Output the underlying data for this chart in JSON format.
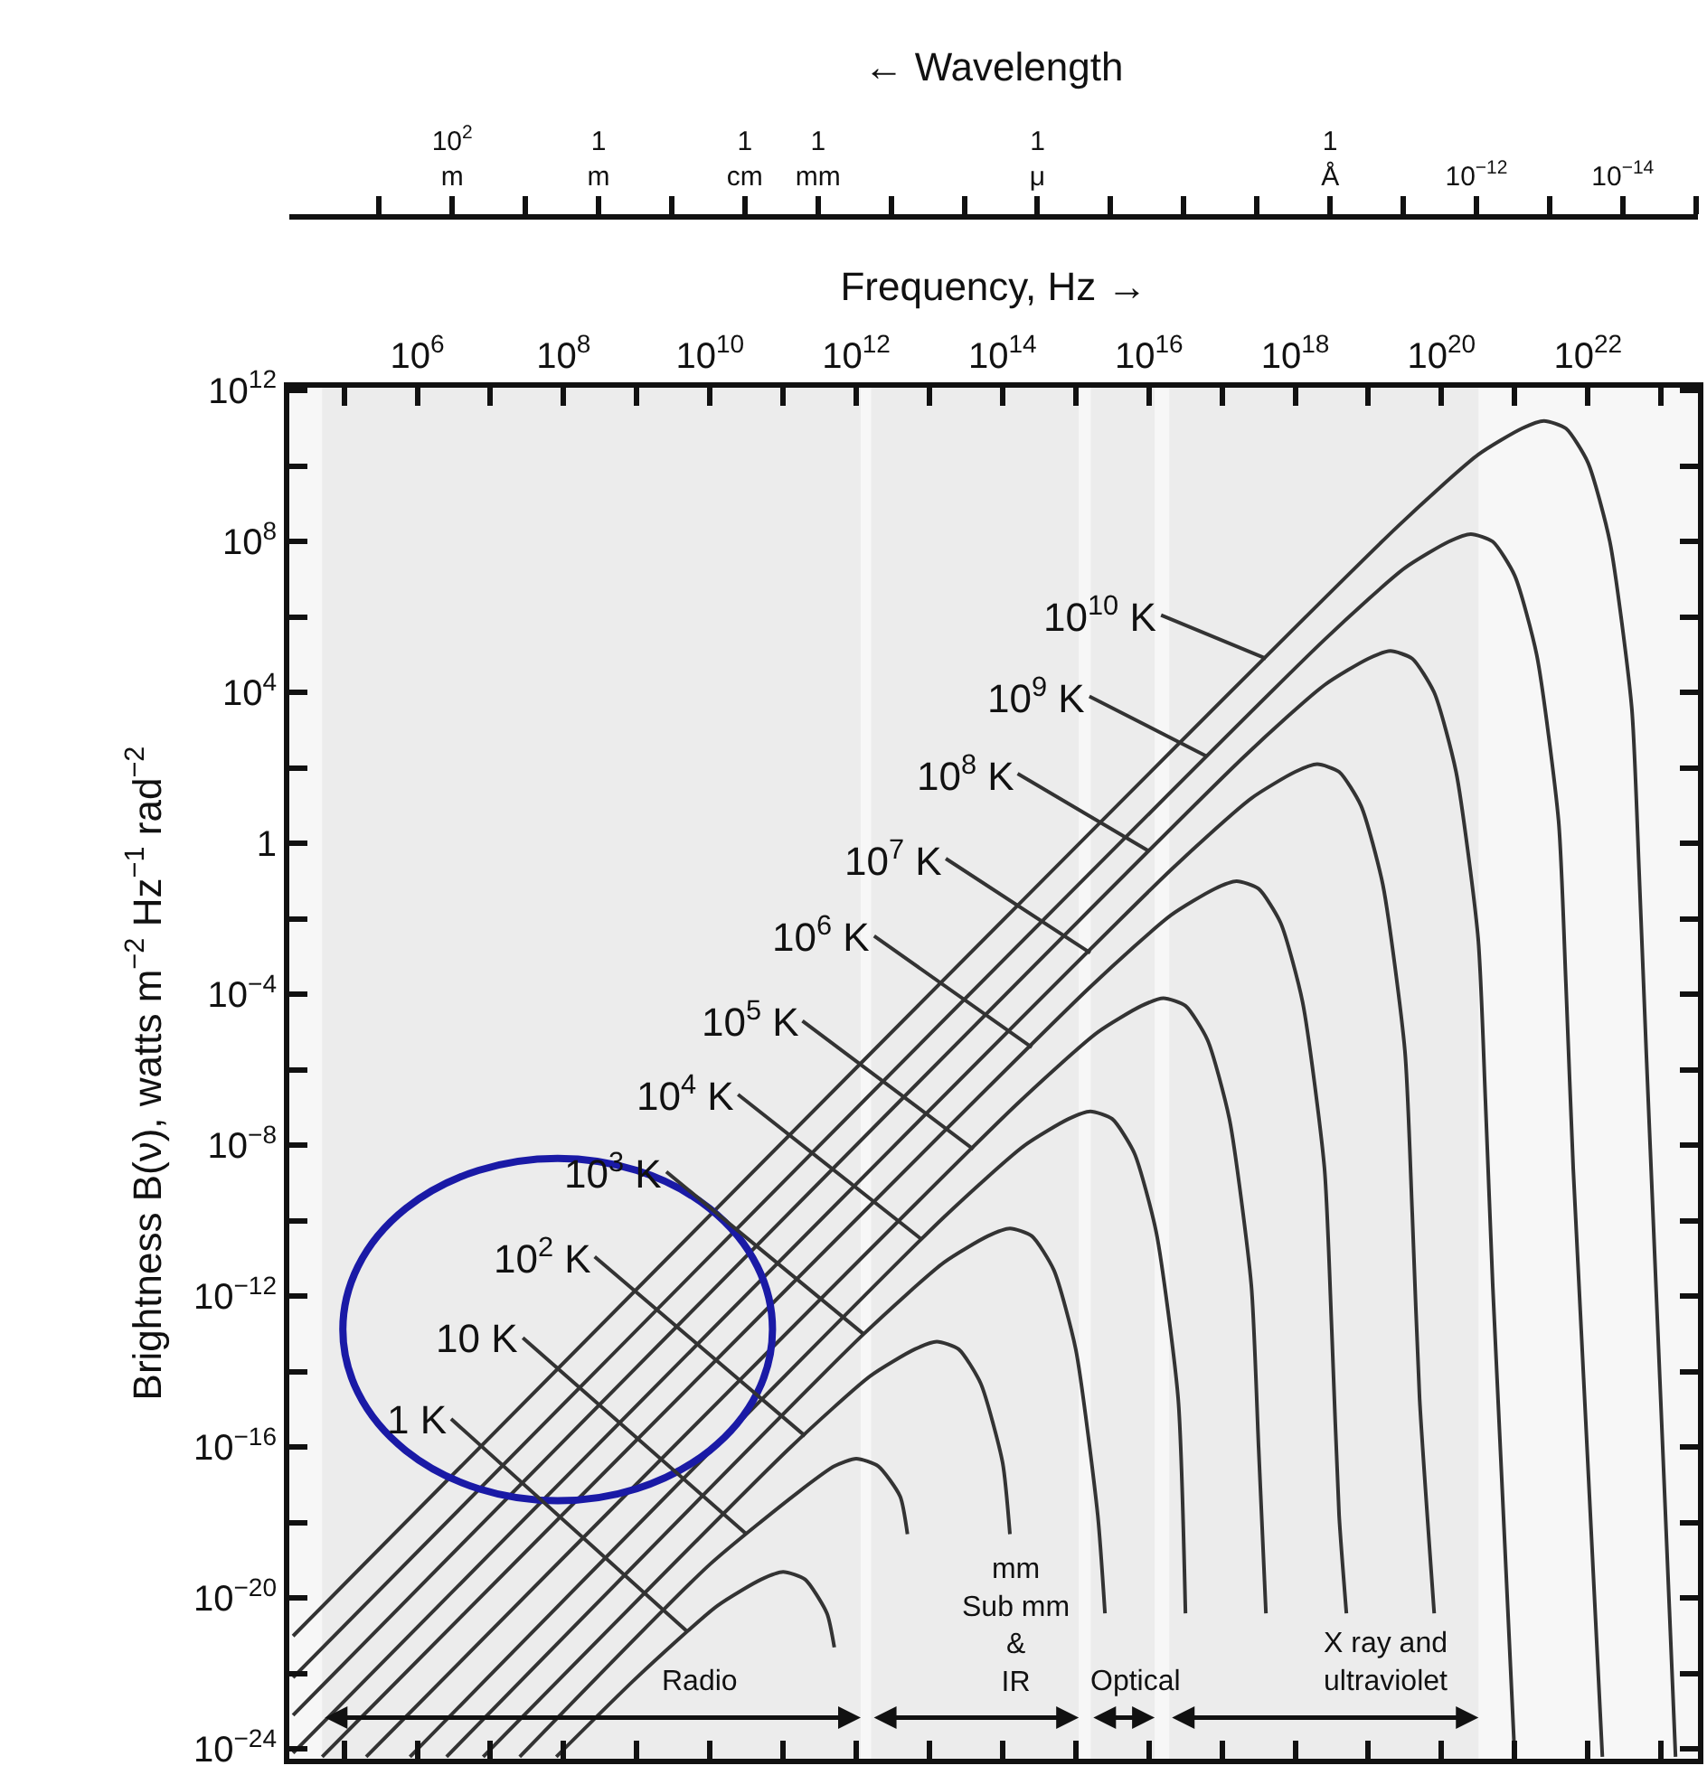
{
  "chart_data": [
    {
      "type": "other",
      "xlabel": "← Wavelength",
      "categories": [
        null,
        "10$^{2}$\nm",
        null,
        "1\nm",
        null,
        "1\ncm",
        "1\nmm",
        null,
        null,
        "1\nμ",
        null,
        null,
        null,
        "1\nÅ",
        null,
        "10$^{−12}$",
        null,
        "10$^{−14}$",
        null
      ]
    },
    {
      "type": "line",
      "xlabel": "Frequency, Hz →",
      "ylabel": "Brightness B(ν), watts m$^{−2}$ Hz$^{−1}$ rad$^{−2}$",
      "log": "xy",
      "marker": "none",
      "line_style": "solid",
      "xlim": [
        17800,
        3.2e+23
      ],
      "ylim": [
        5.6e-25,
        1200000000000.0
      ],
      "xticks": [
        {
          "value": 100000.0,
          "label": null
        },
        {
          "value": 1000000.0,
          "label": "10$^{6}$"
        },
        {
          "value": 10000000.0,
          "label": null
        },
        {
          "value": 100000000.0,
          "label": "10$^{8}$"
        },
        {
          "value": 1000000000.0,
          "label": null
        },
        {
          "value": 10000000000.0,
          "label": "10$^{10}$"
        },
        {
          "value": 100000000000.0,
          "label": null
        },
        {
          "value": 1000000000000.0,
          "label": "10$^{12}$"
        },
        {
          "value": 10000000000000.0,
          "label": null
        },
        {
          "value": 100000000000000.0,
          "label": "10$^{14}$"
        },
        {
          "value": 1000000000000000.0,
          "label": null
        },
        {
          "value": 1e+16,
          "label": "10$^{16}$"
        },
        {
          "value": 1e+17,
          "label": null
        },
        {
          "value": 1e+18,
          "label": "10$^{18}$"
        },
        {
          "value": 1e+19,
          "label": null
        },
        {
          "value": 1e+20,
          "label": "10$^{20}$"
        },
        {
          "value": 1e+21,
          "label": null
        },
        {
          "value": 1e+22,
          "label": "10$^{22}$"
        },
        {
          "value": 1e+23,
          "label": null
        }
      ],
      "yticks": [
        {
          "value": 1e-24,
          "label": "10$^{−24}$"
        },
        {
          "value": 1e-22,
          "label": null
        },
        {
          "value": 1e-20,
          "label": "10$^{−20}$"
        },
        {
          "value": 1e-18,
          "label": null
        },
        {
          "value": 1e-16,
          "label": "10$^{−16}$"
        },
        {
          "value": 1e-14,
          "label": null
        },
        {
          "value": 1e-12,
          "label": "10$^{−12}$"
        },
        {
          "value": 1e-10,
          "label": null
        },
        {
          "value": 1e-08,
          "label": "10$^{−8}$"
        },
        {
          "value": 1e-06,
          "label": null
        },
        {
          "value": 0.0001,
          "label": "10$^{−4}$"
        },
        {
          "value": 0.01,
          "label": null
        },
        {
          "value": 1,
          "label": "1"
        },
        {
          "value": 100,
          "label": null
        },
        {
          "value": 10000.0,
          "label": "10$^{4}$"
        },
        {
          "value": 1000000.0,
          "label": null
        },
        {
          "value": 100000000.0,
          "label": "10$^{8}$"
        },
        {
          "value": 10000000000.0,
          "label": null
        },
        {
          "value": 1000000000000.0,
          "label": "10$^{12}$"
        }
      ],
      "series": [
        {
          "color": "#333333",
          "x": [
            79400000.0,
            1000000000.0,
            12600000000.0,
            50100000000.0,
            100000000000.0,
            200000000000.0,
            398000000000.0,
            501000000000.0
          ],
          "values": [
            6.31e-25,
            7.94e-23,
            6.31e-21,
            3.16e-20,
            5.01e-20,
            3.16e-20,
            3.98e-21,
            5.01e-22
          ]
        },
        {
          "color": "#333333",
          "x": [
            25100000.0,
            10000000000.0,
            158000000000.0,
            501000000000.0,
            1000000000000.0,
            2000000000000.0,
            3980000000000.0,
            5010000000000.0
          ],
          "values": [
            6.31e-25,
            7.94e-20,
            6.31e-18,
            3.16e-17,
            5.01e-17,
            3.16e-17,
            5.01e-18,
            5.01e-19
          ]
        },
        {
          "color": "#333333",
          "x": [
            7940000.0,
            126000000000.0,
            1580000000000.0,
            6310000000000.0,
            12600000000000.0,
            25100000000000.0,
            50100000000000.0,
            100000000000000.0,
            126000000000000.0
          ],
          "values": [
            6.31e-25,
            1e-16,
            7.94e-15,
            3.98e-14,
            6.31e-14,
            3.98e-14,
            5.01e-15,
            3.98e-17,
            5.01e-19
          ]
        },
        {
          "color": "#333333",
          "x": [
            2510000.0,
            1260000000000.0,
            15800000000000.0,
            63100000000000.0,
            126000000000000.0,
            251000000000000.0,
            501000000000000.0,
            1000000000000000.0,
            2000000000000000.0,
            2510000000000000.0
          ],
          "values": [
            6.31e-25,
            1e-13,
            7.94e-12,
            3.98e-11,
            6.31e-11,
            3.98e-11,
            5.01e-12,
            3.98e-14,
            1.58e-18,
            3.98e-21
          ]
        },
        {
          "color": "#333333",
          "x": [
            794000.0,
            15800000000000.0,
            200000000000000.0,
            794000000000000.0,
            1580000000000000.0,
            3160000000000000.0,
            6310000000000000.0,
            1.26e+16,
            2.51e+16,
            3.16e+16
          ],
          "values": [
            6.31e-25,
            1.26e-10,
            1e-08,
            5.01e-08,
            7.94e-08,
            5.01e-08,
            6.31e-09,
            5.01e-11,
            2e-15,
            3.98e-21
          ]
        },
        {
          "color": "#333333",
          "x": [
            200000.0,
            158000000000000.0,
            2000000000000000.0,
            7940000000000000.0,
            1.58e+16,
            3.16e+16,
            6.31e+16,
            1.26e+17,
            2.51e+17,
            3.16e+17,
            3.98e+17
          ],
          "values": [
            6.31e-25,
            1.26e-07,
            1e-05,
            5.01e-05,
            7.94e-05,
            5.01e-05,
            6.31e-06,
            5.01e-08,
            2e-12,
            1e-16,
            3.98e-21
          ]
        },
        {
          "color": "#333333",
          "x": [
            50100.0,
            1580000000000000.0,
            2e+16,
            7.94e+16,
            1.58e+17,
            3.16e+17,
            6.31e+17,
            1.26e+18,
            2.51e+18,
            3.16e+18,
            3.98e+18,
            5.01e+18
          ],
          "values": [
            6.31e-25,
            0.000158,
            0.0126,
            0.0631,
            0.1,
            0.0631,
            0.00794,
            6.31e-05,
            2.51e-09,
            1.26e-13,
            1.58e-18,
            3.98e-21
          ]
        },
        {
          "color": "#333333",
          "x": [
            20000.0,
            2e+16,
            2.51e+17,
            1e+18,
            2e+18,
            3.98e+18,
            7.94e+18,
            1.58e+19,
            3.16e+19,
            3.98e+19,
            5.01e+19,
            7.94e+19
          ],
          "values": [
            7.94e-25,
            0.2,
            15.8,
            79.4,
            126,
            79.4,
            10,
            0.0794,
            3.16e-06,
            1.58e-10,
            2e-15,
            3.98e-21
          ]
        },
        {
          "color": "#333333",
          "x": [
            20000.0,
            2e+17,
            2.51e+18,
            1e+19,
            2e+19,
            3.98e+19,
            7.94e+19,
            1.58e+20,
            3.16e+20,
            3.98e+20,
            5.01e+20,
            1e+21
          ],
          "values": [
            7.94e-24,
            200,
            15800.0,
            79400.0,
            126000.0,
            79400.0,
            10000.0,
            79.4,
            0.00316,
            1.58e-07,
            2e-12,
            6.31e-25
          ]
        },
        {
          "color": "#333333",
          "x": [
            20000.0,
            2.51e+18,
            3.16e+19,
            1.26e+20,
            2.51e+20,
            5.01e+20,
            1e+21,
            2e+21,
            3.98e+21,
            5.01e+21,
            6.31e+21,
            1.58e+22
          ],
          "values": [
            7.94e-23,
            251000.0,
            20000000.0,
            100000000.0,
            158000000.0,
            100000000.0,
            12600000.0,
            100000.0,
            3.98,
            0.0002,
            2.51e-09,
            6.31e-25
          ]
        },
        {
          "color": "#333333",
          "x": [
            20000.0,
            2.51e+19,
            3.16e+20,
            1.26e+21,
            2.51e+21,
            5.01e+21,
            1e+22,
            2e+22,
            3.98e+22,
            5.01e+22,
            6.31e+22,
            1.58e+23
          ],
          "values": [
            1e-21,
            251000000.0,
            20000000000.0,
            100000000000.0,
            158000000000.0,
            100000000000.0,
            12600000000.0,
            100000000.0,
            3980.0,
            0.2,
            2.51e-06,
            6.31e-25
          ]
        }
      ],
      "annotations": [
        {
          "text": "1 K",
          "x": 5010000000.0,
          "y": 1.26e-21
        },
        {
          "text": "10 K",
          "x": 31600000000.0,
          "y": 5.01e-19
        },
        {
          "text": "10$^{2}$ K",
          "x": 200000000000.0,
          "y": 2e-16
        },
        {
          "text": "10$^{3}$ K",
          "x": 1260000000000.0,
          "y": 1e-13
        },
        {
          "text": "10$^{4}$ K",
          "x": 7940000000000.0,
          "y": 3.16e-11
        },
        {
          "text": "10$^{5}$ K",
          "x": 39800000000000.0,
          "y": 7.94e-09
        },
        {
          "text": "10$^{6}$ K",
          "x": 251000000000000.0,
          "y": 3.98e-06
        },
        {
          "text": "10$^{7}$ K",
          "x": 1580000000000000.0,
          "y": 0.00126
        },
        {
          "text": "10$^{8}$ K",
          "x": 1e+16,
          "y": 0.631
        },
        {
          "text": "10$^{9}$ K",
          "x": 6.31e+16,
          "y": 200
        },
        {
          "text": "10$^{10}$ K",
          "x": 3.98e+17,
          "y": 79400.0
        }
      ],
      "bands": [
        {
          "axis": "x",
          "from": 50000,
          "to": 1150000000000.0,
          "label": "Radio"
        },
        {
          "axis": "x",
          "from": 1600000000000.0,
          "to": 1100000000000000.0,
          "label": "mm\nSub mm\n&\nIR"
        },
        {
          "axis": "x",
          "from": 1600000000000000.0,
          "to": 1.2e+16,
          "label": "Optical"
        },
        {
          "axis": "x",
          "from": 1.9e+16,
          "to": 3.2e+20,
          "label": "X ray and\nultraviolet"
        }
      ]
    }
  ]
}
